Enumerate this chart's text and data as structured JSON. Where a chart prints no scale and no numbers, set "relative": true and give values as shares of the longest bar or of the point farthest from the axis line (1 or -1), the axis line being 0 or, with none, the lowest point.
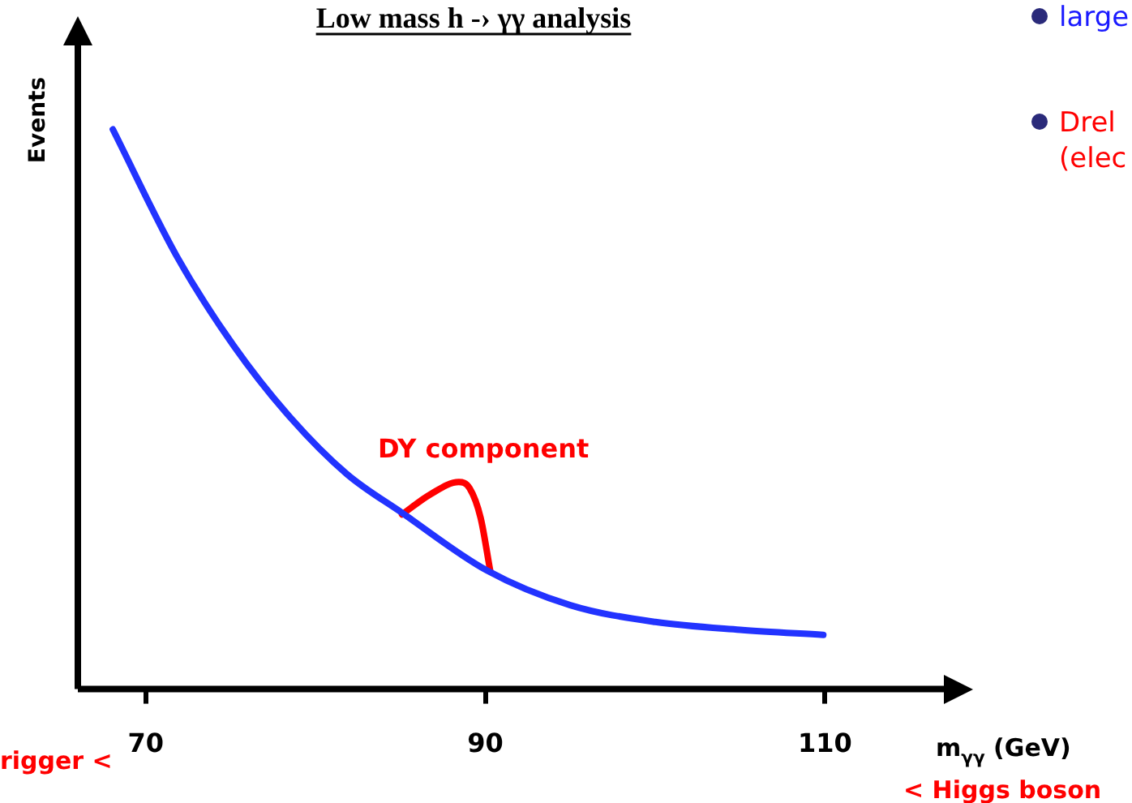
{
  "chart_data": {
    "type": "line",
    "title": "Low mass h -› γγ analysis",
    "xlabel": "m$_{γγ}$ (GeV)",
    "ylabel": "Events",
    "relative": true,
    "xlim": [
      66,
      117
    ],
    "xticks": [
      70,
      90,
      110
    ],
    "grid": false,
    "legend": false,
    "marker": "none",
    "line_style": "solid",
    "series": [
      {
        "color": "#2233ff",
        "x": [
          68.06,
          71.85,
          75.19,
          78.52,
          81.85,
          85.09,
          90.09,
          95.0,
          100.0,
          105.0,
          109.9
        ],
        "values": [
          1,
          0.772,
          0.613,
          0.485,
          0.384,
          0.315,
          0.212,
          0.15,
          0.12,
          0.106,
          0.097
        ]
      },
      {
        "color": "#ff0000",
        "x": [
          85.09,
          86.76,
          88.43,
          89.07,
          89.72,
          90.28
        ],
        "values": [
          0.312,
          0.348,
          0.37,
          0.359,
          0.306,
          0.212
        ]
      }
    ],
    "annotations": [
      "DY component",
      "rigger <",
      "< Higgs boson",
      "large",
      "Drel",
      "(elec"
    ]
  }
}
